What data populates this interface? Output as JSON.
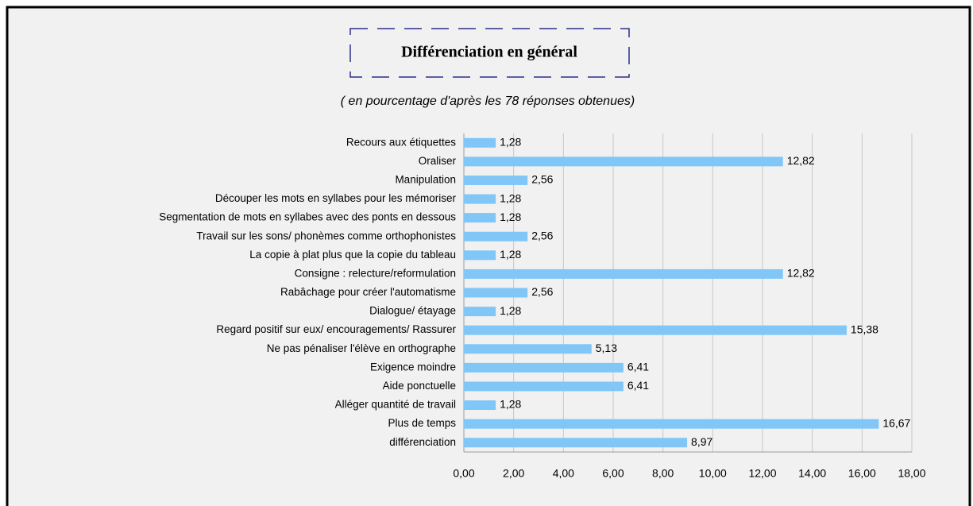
{
  "chart_data": {
    "type": "bar",
    "orientation": "horizontal",
    "title": "Différenciation en général",
    "subtitle": "( en pourcentage d'après les 78 réponses obtenues)",
    "categories": [
      "Recours aux étiquettes",
      "Oraliser",
      "Manipulation",
      "Découper les mots en syllabes pour les mémoriser",
      "Segmentation de mots en syllabes avec des ponts en dessous",
      "Travail sur les sons/ phonèmes comme orthophonistes",
      "La copie à plat plus que la copie du tableau",
      "Consigne : relecture/reformulation",
      "Rabâchage pour créer l'automatisme",
      "Dialogue/ étayage",
      "Regard positif sur eux/ encouragements/ Rassurer",
      "Ne pas pénaliser l'élève en orthographe",
      "Exigence moindre",
      "Aide ponctuelle",
      "Alléger quantité de travail",
      "Plus de temps",
      "différenciation"
    ],
    "values": [
      1.28,
      12.82,
      2.56,
      1.28,
      1.28,
      2.56,
      1.28,
      12.82,
      2.56,
      1.28,
      15.38,
      5.13,
      6.41,
      6.41,
      1.28,
      16.67,
      8.97
    ],
    "value_labels": [
      "1,28",
      "12,82",
      "2,56",
      "1,28",
      "1,28",
      "2,56",
      "1,28",
      "12,82",
      "2,56",
      "1,28",
      "15,38",
      "5,13",
      "6,41",
      "6,41",
      "1,28",
      "16,67",
      "8,97"
    ],
    "color": "#80c6f7",
    "xlim": [
      0,
      18
    ],
    "xticks": [
      {
        "value": 0,
        "label": "0,00"
      },
      {
        "value": 2,
        "label": "2,00"
      },
      {
        "value": 4,
        "label": "4,00"
      },
      {
        "value": 6,
        "label": "6,00"
      },
      {
        "value": 8,
        "label": "8,00"
      },
      {
        "value": 10,
        "label": "10,00"
      },
      {
        "value": 12,
        "label": "12,00"
      },
      {
        "value": 14,
        "label": "14,00"
      },
      {
        "value": 16,
        "label": "16,00"
      },
      {
        "value": 18,
        "label": "18,00"
      }
    ],
    "grid": true
  }
}
